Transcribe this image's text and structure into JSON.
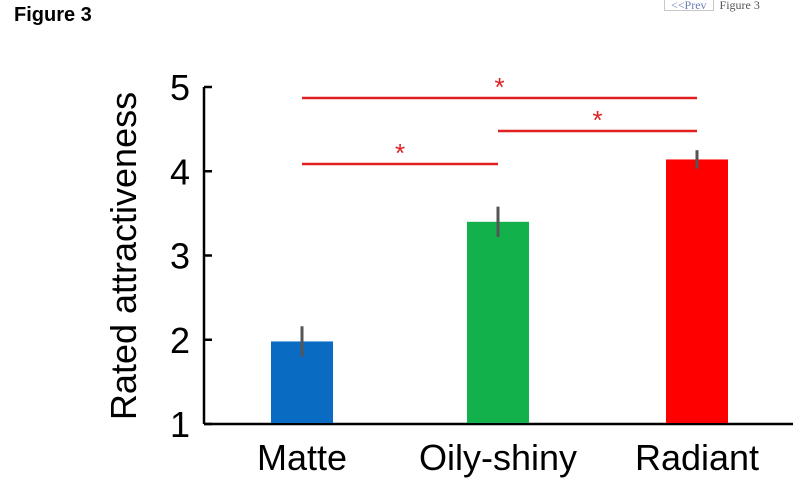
{
  "page": {
    "figure_title": "Figure 3",
    "nav_prev_label": "<<Prev",
    "nav_label": "Figure 3"
  },
  "chart_data": {
    "type": "bar",
    "title": "",
    "xlabel": "",
    "ylabel": "Rated attractiveness",
    "ylim": [
      1,
      5
    ],
    "yticks": [
      1,
      2,
      3,
      4,
      5
    ],
    "grid": false,
    "categories": [
      "Matte",
      "Oily-shiny",
      "Radiant"
    ],
    "values": [
      1.98,
      3.4,
      4.14
    ],
    "errors": [
      0.18,
      0.18,
      0.11
    ],
    "colors": [
      "#0a6bc3",
      "#12b14c",
      "#fe0000"
    ],
    "error_color": "#555555",
    "significance": [
      {
        "from": "Matte",
        "to": "Radiant",
        "label": "*"
      },
      {
        "from": "Oily-shiny",
        "to": "Radiant",
        "label": "*"
      },
      {
        "from": "Matte",
        "to": "Oily-shiny",
        "label": "*"
      }
    ],
    "significance_color": "#e02020"
  }
}
